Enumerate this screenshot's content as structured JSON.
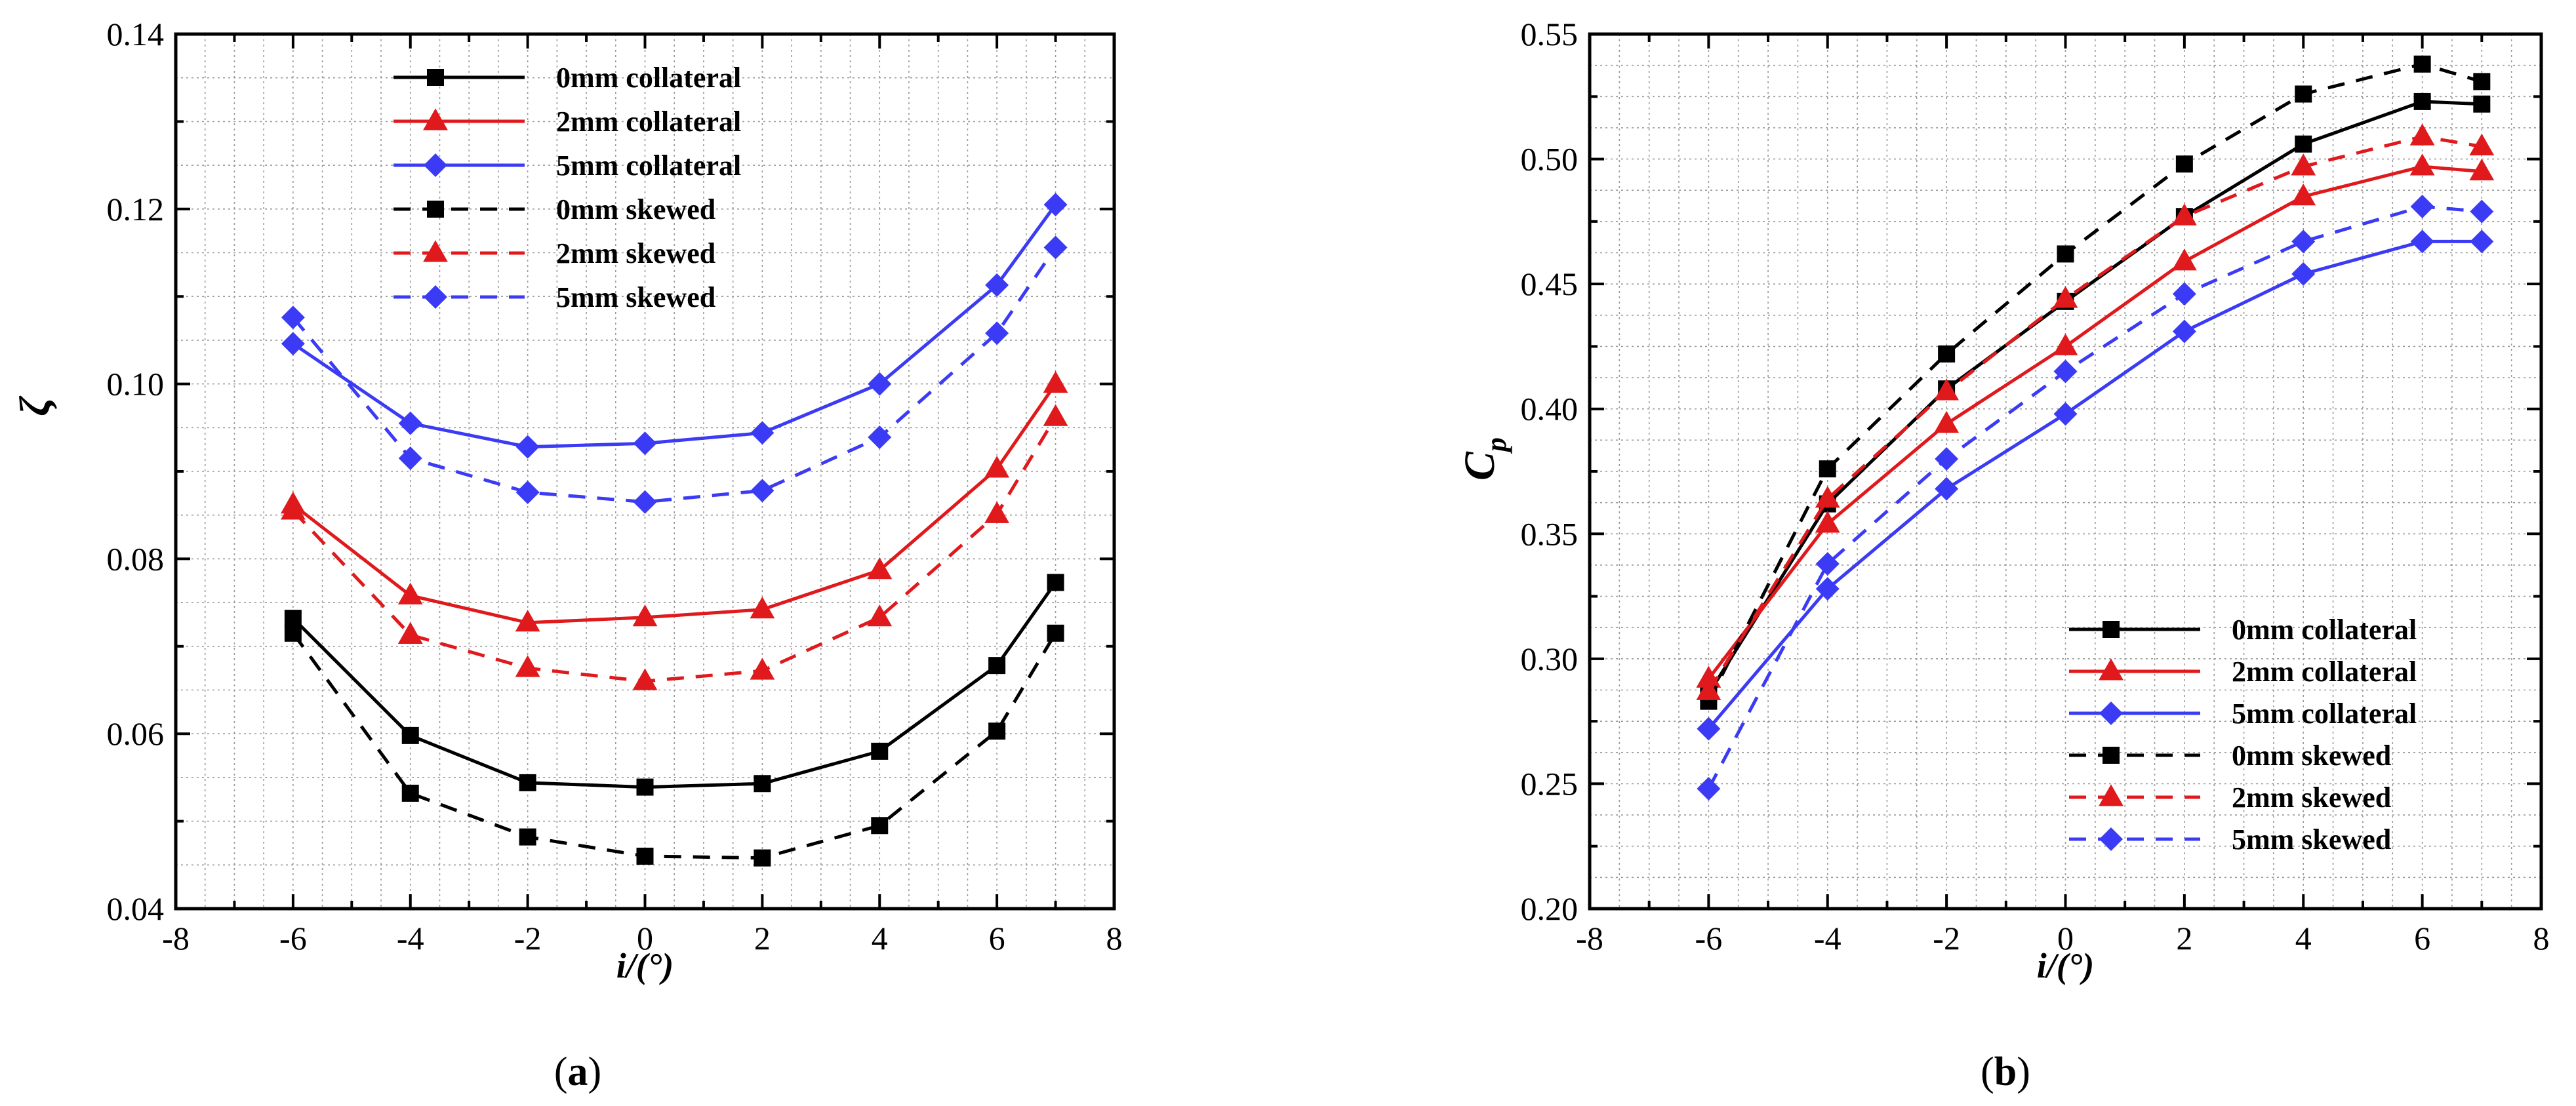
{
  "colors": {
    "black": "#000000",
    "red": "#e0191c",
    "blue": "#3b3bf5",
    "grid": "#9a9a9a"
  },
  "chart_data": [
    {
      "panel_label": "a",
      "type": "line",
      "title": "",
      "xlabel": "i/(°)",
      "ylabel": "ζ",
      "xlim": [
        -8,
        8
      ],
      "ylim": [
        0.04,
        0.14
      ],
      "xticks": [
        -8,
        -6,
        -4,
        -2,
        0,
        2,
        4,
        6,
        8
      ],
      "xtick_labels": [
        "-8",
        "-6",
        "-4",
        "-2",
        "0",
        "2",
        "4",
        "6",
        "8"
      ],
      "yticks": [
        0.04,
        0.06,
        0.08,
        0.1,
        0.12,
        0.14
      ],
      "ytick_labels": [
        "0.04",
        "0.06",
        "0.08",
        "0.10",
        "0.12",
        "0.14"
      ],
      "grid": true,
      "legend_position": "top-center",
      "x": [
        -6,
        -4,
        -2,
        0,
        2,
        4,
        6,
        7
      ],
      "series": [
        {
          "name": "0mm collateral",
          "color": "black",
          "dash": "solid",
          "marker": "square",
          "values": [
            0.0732,
            0.0598,
            0.0544,
            0.0539,
            0.0543,
            0.058,
            0.0678,
            0.0773
          ]
        },
        {
          "name": "2mm collateral",
          "color": "red",
          "dash": "solid",
          "marker": "triangle",
          "values": [
            0.0862,
            0.0758,
            0.0727,
            0.0733,
            0.0742,
            0.0787,
            0.0903,
            0.1
          ]
        },
        {
          "name": "5mm collateral",
          "color": "blue",
          "dash": "solid",
          "marker": "diamond",
          "values": [
            0.1046,
            0.0955,
            0.0928,
            0.0932,
            0.0944,
            0.1,
            0.1113,
            0.1205
          ]
        },
        {
          "name": "0mm skewed",
          "color": "black",
          "dash": "dashed",
          "marker": "square",
          "values": [
            0.0715,
            0.0532,
            0.0482,
            0.046,
            0.0458,
            0.0495,
            0.0603,
            0.0715
          ]
        },
        {
          "name": "2mm skewed",
          "color": "red",
          "dash": "dashed",
          "marker": "triangle",
          "values": [
            0.0855,
            0.0713,
            0.0675,
            0.066,
            0.0672,
            0.0733,
            0.0851,
            0.0962
          ]
        },
        {
          "name": "5mm skewed",
          "color": "blue",
          "dash": "dashed",
          "marker": "diamond",
          "values": [
            0.1076,
            0.0915,
            0.0876,
            0.0865,
            0.0878,
            0.0939,
            0.1058,
            0.1156
          ]
        }
      ]
    },
    {
      "panel_label": "b",
      "type": "line",
      "title": "",
      "xlabel": "i/(°)",
      "ylabel": "C",
      "ylabel_sub": "p",
      "xlim": [
        -8,
        8
      ],
      "ylim": [
        0.2,
        0.55
      ],
      "xticks": [
        -8,
        -6,
        -4,
        -2,
        0,
        2,
        4,
        6,
        8
      ],
      "xtick_labels": [
        "-8",
        "-6",
        "-4",
        "-2",
        "0",
        "2",
        "4",
        "6",
        "8"
      ],
      "yticks": [
        0.2,
        0.25,
        0.3,
        0.35,
        0.4,
        0.45,
        0.5,
        0.55
      ],
      "ytick_labels": [
        "0.20",
        "0.25",
        "0.30",
        "0.35",
        "0.40",
        "0.45",
        "0.50",
        "0.55"
      ],
      "grid": true,
      "legend_position": "bottom-right",
      "x": [
        -6,
        -4,
        -2,
        0,
        2,
        4,
        6,
        7
      ],
      "series": [
        {
          "name": "0mm collateral",
          "color": "black",
          "dash": "solid",
          "marker": "square",
          "values": [
            0.286,
            0.362,
            0.408,
            0.443,
            0.477,
            0.506,
            0.523,
            0.522
          ]
        },
        {
          "name": "2mm collateral",
          "color": "red",
          "dash": "solid",
          "marker": "triangle",
          "values": [
            0.292,
            0.354,
            0.394,
            0.425,
            0.459,
            0.485,
            0.497,
            0.495
          ]
        },
        {
          "name": "5mm collateral",
          "color": "blue",
          "dash": "solid",
          "marker": "diamond",
          "values": [
            0.272,
            0.328,
            0.368,
            0.398,
            0.431,
            0.454,
            0.467,
            0.467
          ]
        },
        {
          "name": "0mm skewed",
          "color": "black",
          "dash": "dashed",
          "marker": "square",
          "values": [
            0.283,
            0.376,
            0.422,
            0.462,
            0.498,
            0.526,
            0.538,
            0.531
          ]
        },
        {
          "name": "2mm skewed",
          "color": "red",
          "dash": "dashed",
          "marker": "triangle",
          "values": [
            0.287,
            0.364,
            0.407,
            0.444,
            0.477,
            0.497,
            0.509,
            0.505
          ]
        },
        {
          "name": "5mm skewed",
          "color": "blue",
          "dash": "dashed",
          "marker": "diamond",
          "values": [
            0.248,
            0.338,
            0.38,
            0.415,
            0.446,
            0.467,
            0.481,
            0.479
          ]
        }
      ]
    }
  ]
}
